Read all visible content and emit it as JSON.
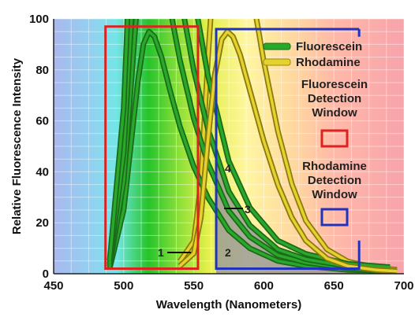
{
  "chart_data": {
    "type": "line",
    "xlabel": "Wavelength (Nanometers)",
    "ylabel": "Relative Fluorescence Intensity",
    "xlim": [
      450,
      700
    ],
    "ylim": [
      0,
      100
    ],
    "x_ticks": [
      "450",
      "500",
      "550",
      "600",
      "650",
      "700"
    ],
    "y_ticks": [
      "0",
      "20",
      "40",
      "60",
      "80",
      "100"
    ],
    "grid": true,
    "legend_position": "top-right",
    "series": [
      {
        "name": "Fluorescein",
        "color": "#2aa82a",
        "points": [
          [
            490,
            2
          ],
          [
            500,
            25
          ],
          [
            505,
            50
          ],
          [
            510,
            75
          ],
          [
            514,
            90
          ],
          [
            518,
            95
          ],
          [
            522,
            93
          ],
          [
            527,
            85
          ],
          [
            533,
            72
          ],
          [
            540,
            58
          ],
          [
            550,
            42
          ],
          [
            560,
            30
          ],
          [
            575,
            17
          ],
          [
            590,
            10
          ],
          [
            610,
            5
          ],
          [
            630,
            3
          ],
          [
            660,
            1.5
          ],
          [
            690,
            1
          ]
        ]
      },
      {
        "name": "Rhodamine",
        "color": "#e6d22c",
        "points": [
          [
            540,
            3
          ],
          [
            550,
            8
          ],
          [
            555,
            22
          ],
          [
            560,
            52
          ],
          [
            565,
            78
          ],
          [
            570,
            92
          ],
          [
            574,
            95
          ],
          [
            578,
            93
          ],
          [
            583,
            86
          ],
          [
            590,
            72
          ],
          [
            600,
            52
          ],
          [
            610,
            35
          ],
          [
            620,
            22
          ],
          [
            630,
            13
          ],
          [
            645,
            6
          ],
          [
            660,
            3
          ],
          [
            680,
            1.5
          ],
          [
            695,
            1
          ]
        ]
      }
    ],
    "annotations": [
      {
        "label": "Fluorescein Detection Window",
        "x_range": [
          487,
          553
        ],
        "color": "#dd2222"
      },
      {
        "label": "Rhodamine Detection Window",
        "x_range": [
          566,
          668
        ],
        "color": "#2233bb"
      }
    ],
    "region_labels": [
      "1",
      "2",
      "3",
      "4"
    ]
  },
  "legend": {
    "fluorescein": "Fluorescein",
    "rhodamine": "Rhodamine",
    "fluorescein_window": [
      "Fluorescein",
      "Detection",
      "Window"
    ],
    "rhodamine_window": [
      "Rhodamine",
      "Detection",
      "Window"
    ]
  },
  "colors": {
    "fluorescein": "#2aa82a",
    "rhodamine": "#e6d22c",
    "fluorescein_window": "#dd2222",
    "rhodamine_window": "#2233bb"
  }
}
